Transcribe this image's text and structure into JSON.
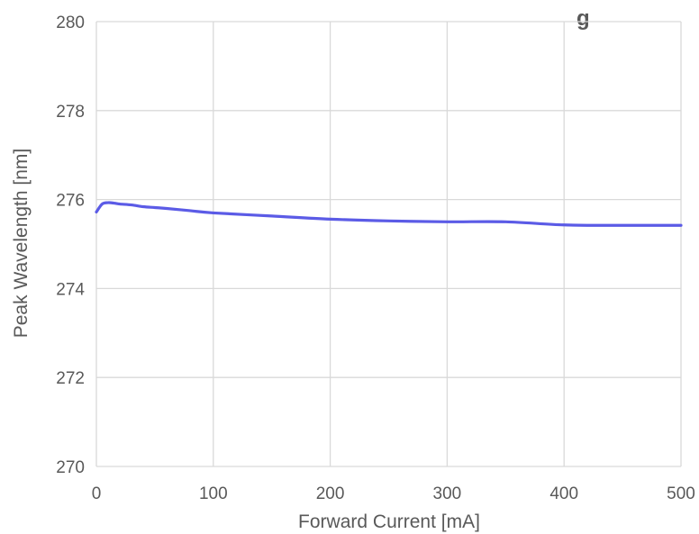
{
  "chart_data": {
    "type": "line",
    "title": "g",
    "xlabel": "Forward Current [mA]",
    "ylabel": "Peak Wavelength [nm]",
    "xlim": [
      0,
      500
    ],
    "ylim": [
      270,
      280
    ],
    "x_ticks": [
      0,
      100,
      200,
      300,
      400,
      500
    ],
    "y_ticks": [
      270,
      272,
      274,
      276,
      278,
      280
    ],
    "x_tick_labels": [
      "0",
      "100",
      "200",
      "300",
      "400",
      "500"
    ],
    "y_tick_labels": [
      "270",
      "272",
      "274",
      "276",
      "278",
      "280"
    ],
    "grid": true,
    "legend": "none",
    "series": [
      {
        "color": "#5b5be6",
        "x": [
          0,
          5,
          10,
          15,
          20,
          30,
          40,
          50,
          60,
          80,
          100,
          150,
          200,
          250,
          300,
          350,
          400,
          450,
          500
        ],
        "y": [
          275.72,
          275.9,
          275.93,
          275.92,
          275.9,
          275.88,
          275.84,
          275.82,
          275.8,
          275.75,
          275.7,
          275.63,
          275.56,
          275.52,
          275.5,
          275.5,
          275.43,
          275.42,
          275.42
        ]
      }
    ]
  }
}
